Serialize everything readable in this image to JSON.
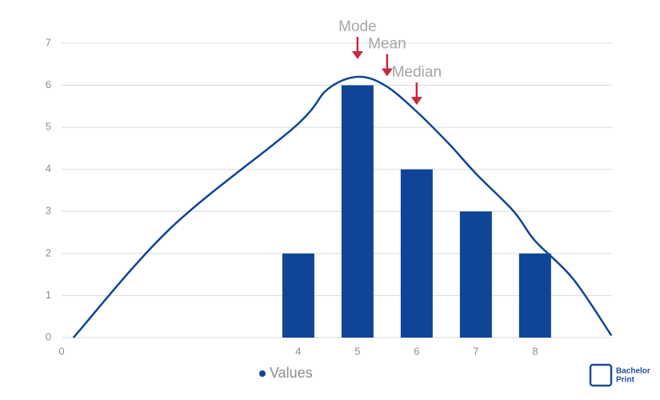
{
  "chart_data": {
    "type": "bar",
    "xlim": [
      0,
      9.3
    ],
    "xticks": [
      0,
      4,
      5,
      6,
      7,
      8
    ],
    "ylim": [
      0,
      7
    ],
    "yticks": [
      0,
      1,
      2,
      3,
      4,
      5,
      6,
      7
    ],
    "grid": true,
    "series": [
      {
        "name": "Values",
        "type": "bar",
        "color": "#0f4496",
        "x": [
          4,
          5,
          6,
          7,
          8
        ],
        "values": [
          2,
          6,
          4,
          3,
          2
        ]
      },
      {
        "type": "line",
        "color": "#0f4496",
        "x": [
          0.2,
          1.84,
          3.93,
          4.49,
          5.0,
          5.46,
          5.98,
          6.55,
          7.0,
          7.64,
          8.0,
          8.64,
          9.29
        ],
        "values": [
          0,
          2.6,
          5.0,
          5.9,
          6.2,
          6.0,
          5.4,
          4.6,
          3.9,
          3.0,
          2.3,
          1.4,
          0.05
        ]
      }
    ],
    "annotations": [
      {
        "text": "Mode",
        "x": 5
      },
      {
        "text": "Mean",
        "x": 5.5
      },
      {
        "text": "Median",
        "x": 6
      }
    ],
    "watermark": [
      "Bachelor",
      "Print"
    ]
  }
}
